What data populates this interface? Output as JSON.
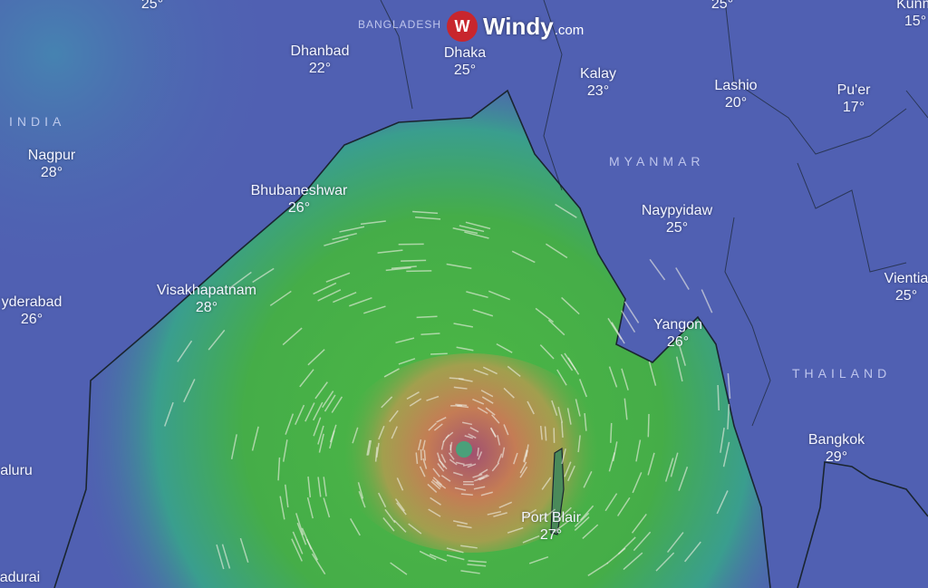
{
  "brand": {
    "name": "Windy",
    "domain": ".com",
    "icon": "windy-logo-icon",
    "color": "#c8262d"
  },
  "countries": [
    {
      "name": "INDIA"
    },
    {
      "name": "BANGLADESH"
    },
    {
      "name": "MYANMAR"
    },
    {
      "name": "THAILAND"
    }
  ],
  "cities": [
    {
      "name": "",
      "temp": "25°"
    },
    {
      "name": "Dhanbad",
      "temp": "22°"
    },
    {
      "name": "Dhaka",
      "temp": "25°"
    },
    {
      "name": "Kalay",
      "temp": "23°"
    },
    {
      "name": "",
      "temp": "25°"
    },
    {
      "name": "Kunm",
      "temp": "15°"
    },
    {
      "name": "Lashio",
      "temp": "20°"
    },
    {
      "name": "Pu'er",
      "temp": "17°"
    },
    {
      "name": "Nagpur",
      "temp": "28°"
    },
    {
      "name": "Bhubaneshwar",
      "temp": "26°"
    },
    {
      "name": "Naypyidaw",
      "temp": "25°"
    },
    {
      "name": "Visakhapatnam",
      "temp": "28°"
    },
    {
      "name": "yderabad",
      "temp": "26°"
    },
    {
      "name": "Vientia",
      "temp": "25°"
    },
    {
      "name": "Yangon",
      "temp": "26°"
    },
    {
      "name": "Bangkok",
      "temp": "29°"
    },
    {
      "name": "aluru",
      "temp": ""
    },
    {
      "name": "Port Blair",
      "temp": "27°"
    },
    {
      "name": "adurai",
      "temp": ""
    }
  ],
  "colors": {
    "land": "#4f5fb0",
    "sea_low": "#3aa0a0",
    "wind_mid": "#3fae3f",
    "wind_high": "#c8884a",
    "wind_max": "#9b4a7a"
  }
}
